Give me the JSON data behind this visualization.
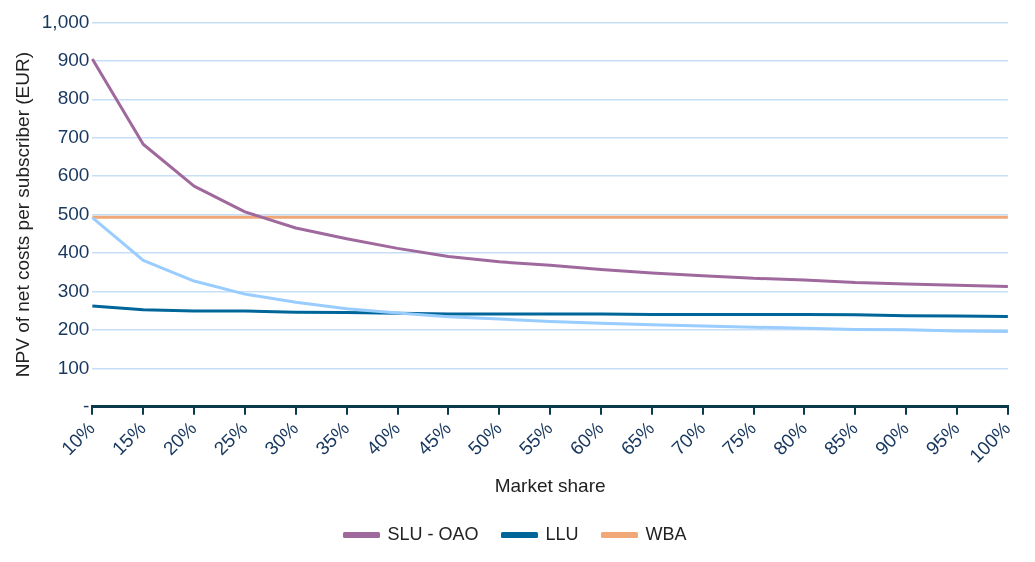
{
  "chart_data": {
    "type": "line",
    "xlabel": "Market share",
    "ylabel": "NPV of net costs per subscriber (EUR)",
    "categories": [
      "10%",
      "15%",
      "20%",
      "25%",
      "30%",
      "35%",
      "40%",
      "45%",
      "50%",
      "55%",
      "60%",
      "65%",
      "70%",
      "75%",
      "80%",
      "85%",
      "90%",
      "95%",
      "100%"
    ],
    "series": [
      {
        "name": "SLU - OAO",
        "color": "#a0699e",
        "values": [
          905,
          683,
          574,
          507,
          465,
          437,
          412,
          391,
          377,
          368,
          357,
          348,
          341,
          334,
          330,
          323,
          319,
          316,
          313
        ]
      },
      {
        "color": "#99ccff",
        "values": [
          492,
          381,
          327,
          293,
          272,
          255,
          244,
          234,
          228,
          222,
          217,
          213,
          210,
          207,
          204,
          201,
          200,
          197,
          196
        ]
      },
      {
        "name": "LLU",
        "color": "#006699",
        "values": [
          262,
          252,
          249,
          249,
          246,
          245,
          243,
          241,
          241,
          241,
          241,
          240,
          240,
          240,
          240,
          239,
          237,
          236,
          235
        ]
      },
      {
        "name": "WBA",
        "color": "#f0a878",
        "values": [
          493,
          493,
          493,
          493,
          493,
          493,
          493,
          493,
          493,
          493,
          493,
          493,
          493,
          493,
          493,
          493,
          493,
          493,
          493
        ]
      }
    ],
    "ylim": [
      0,
      1000
    ],
    "yticks": [
      {
        "value": 0,
        "label": "-"
      },
      100,
      200,
      300,
      400,
      500,
      600,
      700,
      800,
      900,
      {
        "value": 1000,
        "label": "1,000"
      }
    ],
    "grid": "y",
    "legend": "bottom",
    "marker": "none",
    "line_style": "solid"
  }
}
